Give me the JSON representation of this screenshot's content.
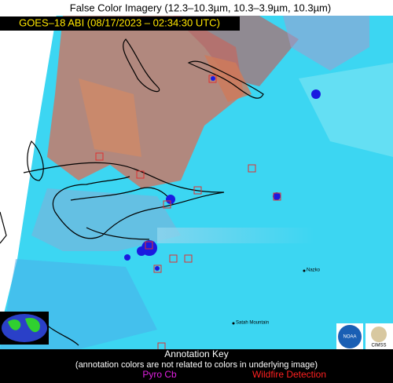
{
  "header": {
    "title": "False Color Imagery (12.3–10.3µm, 10.3–3.9µm, 10.3µm)",
    "timestamp": "GOES–18 ABI (08/17/2023 – 02:34:30 UTC)"
  },
  "places": [
    "Nazko",
    "Satah Mountain"
  ],
  "annotation_key": {
    "title": "Annotation Key",
    "note": "(annotation colors are not related to colors in underlying image)",
    "pyro_cb": "Pyro Cb",
    "wildfire": "Wildfire Detection"
  },
  "logos": [
    "NOAA",
    "CIMSS"
  ]
}
